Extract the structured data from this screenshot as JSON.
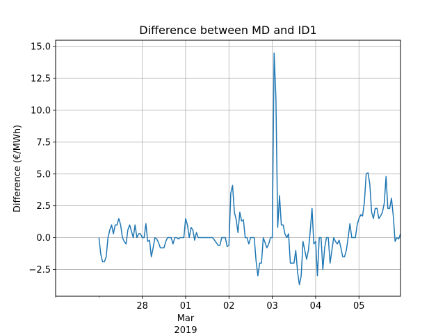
{
  "chart_data": {
    "type": "line",
    "title": "Difference between MD and ID1",
    "xlabel": "",
    "ylabel": "Difference (€/MWh)",
    "grid": true,
    "color": "#1f77b4",
    "xlim": [
      "2019-02-26T00:00",
      "2019-03-05T23:00"
    ],
    "ylim": [
      -4.6,
      15.5
    ],
    "yticks": [
      {
        "value": -2.5,
        "label": "−2.5"
      },
      {
        "value": 0.0,
        "label": "0.0"
      },
      {
        "value": 2.5,
        "label": "2.5"
      },
      {
        "value": 5.0,
        "label": "5.0"
      },
      {
        "value": 7.5,
        "label": "7.5"
      },
      {
        "value": 10.0,
        "label": "10.0"
      },
      {
        "value": 12.5,
        "label": "12.5"
      },
      {
        "value": 15.0,
        "label": "15.0"
      }
    ],
    "xticks": [
      {
        "value": "2019-02-28T00:00",
        "label": "28"
      },
      {
        "value": "2019-03-01T00:00",
        "label": "01",
        "sublabel": "Mar",
        "sublabel2": "2019"
      },
      {
        "value": "2019-03-02T00:00",
        "label": "02"
      },
      {
        "value": "2019-03-03T00:00",
        "label": "03"
      },
      {
        "value": "2019-03-04T00:00",
        "label": "04"
      },
      {
        "value": "2019-03-05T00:00",
        "label": "05"
      }
    ],
    "series": [
      {
        "x": [
          "2019-02-27T00:00",
          "2019-02-27T01:00",
          "2019-02-27T02:00",
          "2019-02-27T03:00",
          "2019-02-27T04:00",
          "2019-02-27T05:00",
          "2019-02-27T06:00",
          "2019-02-27T07:00",
          "2019-02-27T08:00",
          "2019-02-27T09:00",
          "2019-02-27T10:00",
          "2019-02-27T11:00",
          "2019-02-27T12:00",
          "2019-02-27T13:00",
          "2019-02-27T14:00",
          "2019-02-27T15:00",
          "2019-02-27T16:00",
          "2019-02-27T17:00",
          "2019-02-27T18:00",
          "2019-02-27T19:00",
          "2019-02-27T20:00",
          "2019-02-27T21:00",
          "2019-02-27T22:00",
          "2019-02-27T23:00",
          "2019-02-28T00:00",
          "2019-02-28T01:00",
          "2019-02-28T02:00",
          "2019-02-28T03:00",
          "2019-02-28T04:00",
          "2019-02-28T05:00",
          "2019-02-28T06:00",
          "2019-02-28T07:00",
          "2019-02-28T08:00",
          "2019-02-28T09:00",
          "2019-02-28T10:00",
          "2019-02-28T11:00",
          "2019-02-28T12:00",
          "2019-02-28T13:00",
          "2019-02-28T14:00",
          "2019-02-28T15:00",
          "2019-02-28T16:00",
          "2019-02-28T17:00",
          "2019-02-28T18:00",
          "2019-02-28T19:00",
          "2019-02-28T20:00",
          "2019-02-28T21:00",
          "2019-02-28T22:00",
          "2019-02-28T23:00",
          "2019-03-01T00:00",
          "2019-03-01T01:00",
          "2019-03-01T02:00",
          "2019-03-01T03:00",
          "2019-03-01T04:00",
          "2019-03-01T05:00",
          "2019-03-01T06:00",
          "2019-03-01T07:00",
          "2019-03-01T08:00",
          "2019-03-01T09:00",
          "2019-03-01T10:00",
          "2019-03-01T11:00",
          "2019-03-01T12:00",
          "2019-03-01T13:00",
          "2019-03-01T14:00",
          "2019-03-01T15:00",
          "2019-03-01T16:00",
          "2019-03-01T17:00",
          "2019-03-01T18:00",
          "2019-03-01T19:00",
          "2019-03-01T20:00",
          "2019-03-01T21:00",
          "2019-03-01T22:00",
          "2019-03-01T23:00",
          "2019-03-02T00:00",
          "2019-03-02T01:00",
          "2019-03-02T02:00",
          "2019-03-02T03:00",
          "2019-03-02T04:00",
          "2019-03-02T05:00",
          "2019-03-02T06:00",
          "2019-03-02T07:00",
          "2019-03-02T08:00",
          "2019-03-02T09:00",
          "2019-03-02T10:00",
          "2019-03-02T11:00",
          "2019-03-02T12:00",
          "2019-03-02T13:00",
          "2019-03-02T14:00",
          "2019-03-02T15:00",
          "2019-03-02T16:00",
          "2019-03-02T17:00",
          "2019-03-02T18:00",
          "2019-03-02T19:00",
          "2019-03-02T20:00",
          "2019-03-02T21:00",
          "2019-03-02T22:00",
          "2019-03-02T23:00",
          "2019-03-03T00:00",
          "2019-03-03T01:00",
          "2019-03-03T02:00",
          "2019-03-03T03:00",
          "2019-03-03T04:00",
          "2019-03-03T05:00",
          "2019-03-03T06:00",
          "2019-03-03T07:00",
          "2019-03-03T08:00",
          "2019-03-03T09:00",
          "2019-03-03T10:00",
          "2019-03-03T11:00",
          "2019-03-03T12:00",
          "2019-03-03T13:00",
          "2019-03-03T14:00",
          "2019-03-03T15:00",
          "2019-03-03T16:00",
          "2019-03-03T17:00",
          "2019-03-03T18:00",
          "2019-03-03T19:00",
          "2019-03-03T20:00",
          "2019-03-03T21:00",
          "2019-03-03T22:00",
          "2019-03-03T23:00",
          "2019-03-04T00:00",
          "2019-03-04T01:00",
          "2019-03-04T02:00",
          "2019-03-04T03:00",
          "2019-03-04T04:00",
          "2019-03-04T05:00",
          "2019-03-04T06:00",
          "2019-03-04T07:00",
          "2019-03-04T08:00",
          "2019-03-04T09:00",
          "2019-03-04T10:00",
          "2019-03-04T11:00",
          "2019-03-04T12:00",
          "2019-03-04T13:00",
          "2019-03-04T14:00",
          "2019-03-04T15:00",
          "2019-03-04T16:00",
          "2019-03-04T17:00",
          "2019-03-04T18:00",
          "2019-03-04T19:00",
          "2019-03-04T20:00",
          "2019-03-04T21:00",
          "2019-03-04T22:00",
          "2019-03-04T23:00",
          "2019-03-05T00:00",
          "2019-03-05T01:00",
          "2019-03-05T02:00",
          "2019-03-05T03:00",
          "2019-03-05T04:00",
          "2019-03-05T05:00",
          "2019-03-05T06:00",
          "2019-03-05T07:00",
          "2019-03-05T08:00",
          "2019-03-05T09:00",
          "2019-03-05T10:00",
          "2019-03-05T11:00",
          "2019-03-05T12:00",
          "2019-03-05T13:00",
          "2019-03-05T14:00",
          "2019-03-05T15:00",
          "2019-03-05T16:00",
          "2019-03-05T17:00",
          "2019-03-05T18:00",
          "2019-03-05T19:00",
          "2019-03-05T20:00",
          "2019-03-05T21:00",
          "2019-03-05T22:00",
          "2019-03-05T23:00"
        ],
        "values": [
          0.0,
          -1.3,
          -1.9,
          -1.9,
          -1.5,
          0.0,
          0.6,
          1.0,
          0.3,
          1.0,
          1.0,
          1.5,
          1.0,
          0.0,
          -0.3,
          -0.5,
          0.6,
          1.0,
          0.5,
          0.0,
          1.0,
          0.0,
          0.3,
          0.3,
          0.0,
          0.0,
          1.1,
          -0.3,
          -0.2,
          -1.5,
          -0.8,
          0.0,
          -0.1,
          -0.4,
          -0.8,
          -0.8,
          -0.8,
          -0.3,
          0.0,
          0.0,
          0.0,
          -0.5,
          0.0,
          0.0,
          -0.1,
          0.0,
          0.0,
          0.0,
          1.5,
          1.0,
          0.0,
          0.8,
          0.6,
          -0.2,
          0.4,
          0.0,
          0.0,
          0.0,
          0.0,
          0.0,
          0.0,
          0.0,
          0.0,
          0.0,
          -0.2,
          -0.4,
          -0.6,
          -0.6,
          0.0,
          0.0,
          0.0,
          -0.7,
          -0.6,
          3.5,
          4.1,
          2.0,
          1.4,
          0.4,
          2.0,
          1.3,
          1.4,
          0.0,
          0.0,
          -0.5,
          0.0,
          0.0,
          0.0,
          -1.8,
          -3.0,
          -2.0,
          -2.0,
          0.0,
          -0.4,
          -0.8,
          -0.5,
          0.0,
          0.0,
          14.5,
          11.0,
          0.8,
          3.3,
          1.0,
          1.0,
          0.3,
          0.0,
          0.3,
          -2.0,
          -2.0,
          -2.0,
          -1.0,
          -2.7,
          -3.7,
          -3.0,
          -0.3,
          -1.0,
          -1.7,
          -1.0,
          0.5,
          2.3,
          -0.5,
          -0.3,
          -3.0,
          0.0,
          0.0,
          -2.5,
          -0.8,
          0.0,
          0.0,
          -2.0,
          -1.0,
          0.0,
          -0.3,
          -0.5,
          -0.2,
          -0.8,
          -1.5,
          -1.5,
          -1.0,
          0.0,
          1.1,
          0.0,
          0.0,
          0.0,
          1.0,
          1.5,
          1.8,
          1.7,
          2.8,
          5.0,
          5.1,
          4.2,
          2.0,
          1.5,
          2.3,
          2.3,
          1.5,
          1.7,
          2.0,
          2.7,
          4.8,
          2.3,
          2.3,
          3.1,
          1.7,
          -0.3,
          0.0,
          -0.1,
          0.3
        ]
      }
    ]
  }
}
